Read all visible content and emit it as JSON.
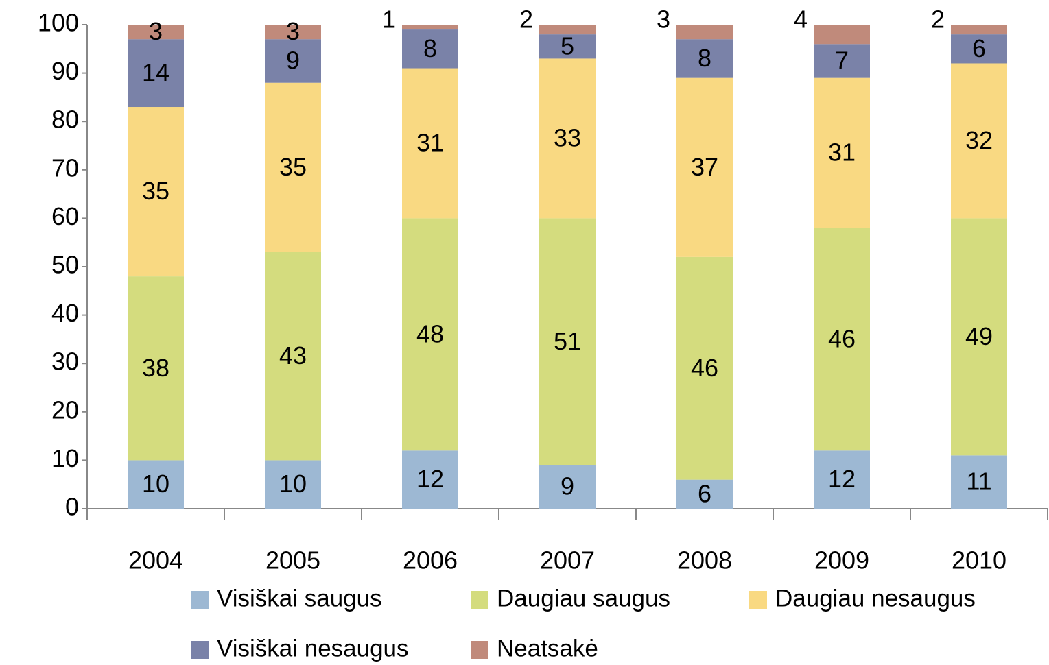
{
  "chart_data": {
    "type": "stacked_bar",
    "categories": [
      "2004",
      "2005",
      "2006",
      "2007",
      "2008",
      "2009",
      "2010"
    ],
    "series": [
      {
        "name": "Visiškai saugus",
        "color": "#9db8d3",
        "values": [
          10,
          10,
          12,
          9,
          6,
          12,
          11
        ]
      },
      {
        "name": "Daugiau saugus",
        "color": "#d4dc7e",
        "values": [
          38,
          43,
          48,
          51,
          46,
          46,
          49
        ]
      },
      {
        "name": "Daugiau nesaugus",
        "color": "#f9d982",
        "values": [
          35,
          35,
          31,
          33,
          37,
          31,
          32
        ]
      },
      {
        "name": "Visiškai nesaugus",
        "color": "#7a82a8",
        "values": [
          14,
          9,
          8,
          5,
          8,
          7,
          6
        ]
      },
      {
        "name": "Neatsakė",
        "color": "#c08a7b",
        "values": [
          3,
          3,
          1,
          2,
          3,
          4,
          2
        ]
      }
    ],
    "ylim": [
      0,
      100
    ],
    "yticks": [
      0,
      10,
      20,
      30,
      40,
      50,
      60,
      70,
      80,
      90,
      100
    ],
    "grid": false
  }
}
